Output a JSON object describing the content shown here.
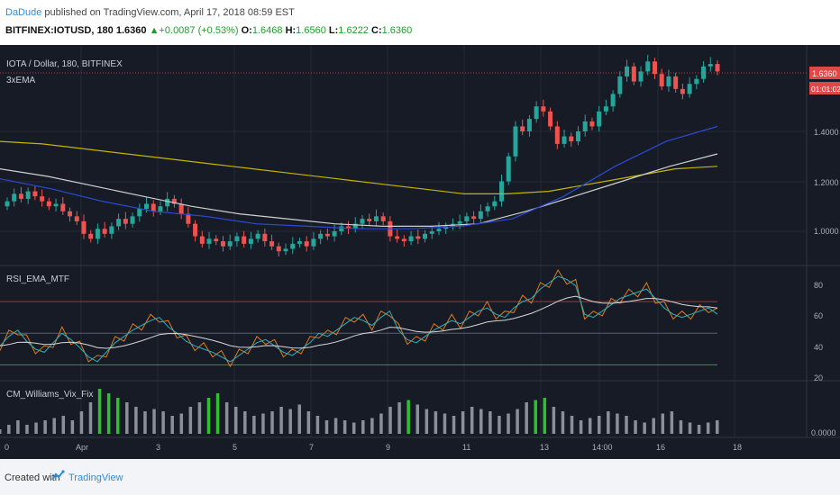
{
  "header": {
    "author": "DaDude",
    "published": " published on TradingView.com, April 17, 2018 08:59 EST"
  },
  "quote": {
    "symbol": "BITFINEX:IOTUSD, 180",
    "last": "1.6360",
    "change": "+0.0087 (+0.53%)",
    "open_label": "O:",
    "open": "1.6468",
    "high_label": "H:",
    "high": "1.6560",
    "low_label": "L:",
    "low": "1.6222",
    "close_label": "C:",
    "close": "1.6360"
  },
  "main_pane": {
    "title": "IOTA / Dollar, 180, BITFINEX",
    "study_label": "3xEMA",
    "price_badge": "1.6360",
    "countdown_badge": "01:01:02",
    "y_ticks": [
      "1.4000",
      "1.2000",
      "1.0000"
    ]
  },
  "rsi_pane": {
    "title": "RSI_EMA_MTF",
    "y_ticks": [
      "80",
      "60",
      "40",
      "20"
    ]
  },
  "vix_pane": {
    "title": "CM_Williams_Vix_Fix",
    "y_ticks": [
      "0.0000"
    ]
  },
  "x_axis": {
    "labels": [
      "0",
      "Apr",
      "3",
      "5",
      "7",
      "9",
      "11",
      "13",
      "14:00",
      "16",
      "18"
    ]
  },
  "footer": {
    "created": "Created with",
    "brand": "TradingView"
  },
  "colors": {
    "background": "#161b26",
    "up": "#26a69a",
    "down": "#ef5350",
    "ema_yellow": "#c8b400",
    "ema_white": "#d0d0d0",
    "ema_blue": "#1f3fbf"
  },
  "chart_data": {
    "type": "candlestick",
    "candle_close": [
      1.12,
      1.15,
      1.13,
      1.16,
      1.14,
      1.12,
      1.1,
      1.11,
      1.08,
      1.06,
      1.04,
      0.99,
      0.97,
      1.01,
      0.99,
      1.02,
      1.05,
      1.03,
      1.06,
      1.09,
      1.11,
      1.08,
      1.1,
      1.13,
      1.11,
      1.07,
      1.03,
      0.98,
      0.95,
      0.97,
      0.96,
      0.94,
      0.96,
      0.98,
      0.95,
      0.97,
      0.99,
      0.96,
      0.94,
      0.92,
      0.93,
      0.95,
      0.96,
      0.94,
      0.97,
      0.99,
      0.98,
      1.0,
      1.02,
      1.01,
      1.03,
      1.05,
      1.04,
      1.06,
      1.04,
      0.98,
      0.97,
      0.96,
      0.98,
      0.97,
      0.99,
      1.0,
      1.01,
      1.02,
      1.03,
      1.04,
      1.06,
      1.05,
      1.08,
      1.1,
      1.12,
      1.2,
      1.3,
      1.42,
      1.4,
      1.45,
      1.5,
      1.48,
      1.42,
      1.35,
      1.38,
      1.36,
      1.4,
      1.44,
      1.42,
      1.48,
      1.5,
      1.55,
      1.62,
      1.66,
      1.6,
      1.64,
      1.68,
      1.63,
      1.58,
      1.62,
      1.57,
      1.55,
      1.59,
      1.61,
      1.66,
      1.67,
      1.64
    ],
    "ema_yellow": [
      1.36,
      1.35,
      1.33,
      1.31,
      1.29,
      1.27,
      1.25,
      1.23,
      1.21,
      1.19,
      1.17,
      1.15,
      1.15,
      1.16,
      1.19,
      1.22,
      1.25,
      1.26
    ],
    "ema_white": [
      1.25,
      1.22,
      1.18,
      1.14,
      1.1,
      1.07,
      1.05,
      1.03,
      1.02,
      1.02,
      1.03,
      1.08,
      1.14,
      1.2,
      1.26,
      1.31
    ],
    "ema_blue": [
      1.21,
      1.17,
      1.12,
      1.08,
      1.06,
      1.03,
      1.02,
      1.01,
      1.01,
      1.02,
      1.05,
      1.14,
      1.26,
      1.36,
      1.42
    ],
    "rsi_levels": {
      "upper": 70,
      "mid": 50,
      "lower": 30
    },
    "rsi_ylim": [
      20,
      90
    ],
    "rsi": [
      42,
      48,
      52,
      45,
      40,
      38,
      44,
      50,
      46,
      41,
      35,
      32,
      38,
      44,
      48,
      52,
      55,
      58,
      60,
      54,
      50,
      45,
      42,
      40,
      38,
      35,
      32,
      36,
      40,
      44,
      46,
      42,
      38,
      36,
      40,
      44,
      50,
      48,
      52,
      56,
      60,
      58,
      55,
      60,
      64,
      52,
      46,
      44,
      48,
      52,
      55,
      58,
      56,
      60,
      64,
      66,
      62,
      60,
      66,
      70,
      72,
      78,
      82,
      86,
      84,
      80,
      62,
      60,
      64,
      68,
      72,
      74,
      76,
      78,
      72,
      66,
      62,
      60,
      62,
      64,
      66,
      62
    ],
    "vix": [
      0.1,
      0.2,
      0.3,
      0.2,
      0.25,
      0.3,
      0.35,
      0.4,
      0.3,
      0.5,
      0.7,
      1.0,
      0.9,
      0.8,
      0.7,
      0.6,
      0.5,
      0.55,
      0.5,
      0.4,
      0.45,
      0.6,
      0.7,
      0.8,
      0.9,
      0.7,
      0.6,
      0.5,
      0.4,
      0.45,
      0.5,
      0.6,
      0.55,
      0.65,
      0.5,
      0.4,
      0.3,
      0.35,
      0.3,
      0.25,
      0.3,
      0.35,
      0.45,
      0.6,
      0.7,
      0.75,
      0.65,
      0.55,
      0.5,
      0.45,
      0.4,
      0.5,
      0.6,
      0.55,
      0.5,
      0.4,
      0.45,
      0.55,
      0.7,
      0.75,
      0.8,
      0.6,
      0.5,
      0.4,
      0.3,
      0.35,
      0.4,
      0.5,
      0.45,
      0.4,
      0.3,
      0.25,
      0.35,
      0.45,
      0.5,
      0.3,
      0.25,
      0.2,
      0.25,
      0.3
    ]
  }
}
